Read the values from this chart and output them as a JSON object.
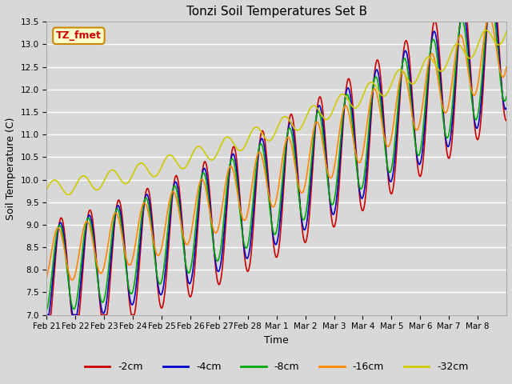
{
  "title": "Tonzi Soil Temperatures Set B",
  "xlabel": "Time",
  "ylabel": "Soil Temperature (C)",
  "ylim": [
    7.0,
    13.5
  ],
  "yticks": [
    7.0,
    7.5,
    8.0,
    8.5,
    9.0,
    9.5,
    10.0,
    10.5,
    11.0,
    11.5,
    12.0,
    12.5,
    13.0,
    13.5
  ],
  "xtick_labels": [
    "Feb 21",
    "Feb 22",
    "Feb 23",
    "Feb 24",
    "Feb 25",
    "Feb 26",
    "Feb 27",
    "Feb 28",
    "Mar 1",
    "Mar 2",
    "Mar 3",
    "Mar 4",
    "Mar 5",
    "Mar 6",
    "Mar 7",
    "Mar 8"
  ],
  "colors": {
    "-2cm": "#cc0000",
    "-4cm": "#0000cc",
    "-8cm": "#00aa00",
    "-16cm": "#ff8800",
    "-32cm": "#cccc00"
  },
  "legend_label": "TZ_fmet",
  "legend_bg": "#ffffcc",
  "legend_border": "#cc8800",
  "fig_bg": "#d8d8d8",
  "plot_bg": "#d8d8d8",
  "grid_color": "#ffffff",
  "series_labels": [
    "-2cm",
    "-4cm",
    "-8cm",
    "-16cm",
    "-32cm"
  ]
}
